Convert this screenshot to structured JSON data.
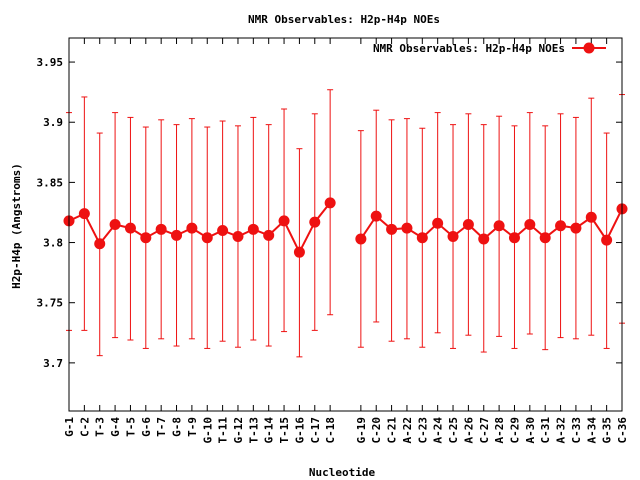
{
  "chart_data": {
    "type": "line",
    "title": "NMR Observables: H2p-H4p NOEs",
    "xlabel": "Nucleotide",
    "ylabel": "H2p-H4p (Angstroms)",
    "ylim": [
      3.66,
      3.97
    ],
    "yticks": [
      "3.7",
      "3.75",
      "3.8",
      "3.85",
      "3.9",
      "3.95"
    ],
    "ytick_values": [
      3.7,
      3.75,
      3.8,
      3.85,
      3.9,
      3.95
    ],
    "legend": {
      "position": "top-right",
      "label": "NMR Observables: H2p-H4p NOEs"
    },
    "series_color": "#ee1111",
    "series": [
      {
        "name": "NMR Observables: H2p-H4p NOEs",
        "points": [
          {
            "x": 1,
            "label": "G-1",
            "y": 3.818,
            "low": 3.727,
            "high": 3.908
          },
          {
            "x": 2,
            "label": "C-2",
            "y": 3.824,
            "low": 3.727,
            "high": 3.921
          },
          {
            "x": 3,
            "label": "T-3",
            "y": 3.799,
            "low": 3.706,
            "high": 3.891
          },
          {
            "x": 4,
            "label": "G-4",
            "y": 3.815,
            "low": 3.721,
            "high": 3.908
          },
          {
            "x": 5,
            "label": "T-5",
            "y": 3.812,
            "low": 3.719,
            "high": 3.904
          },
          {
            "x": 6,
            "label": "G-6",
            "y": 3.804,
            "low": 3.712,
            "high": 3.896
          },
          {
            "x": 7,
            "label": "T-7",
            "y": 3.811,
            "low": 3.72,
            "high": 3.902
          },
          {
            "x": 8,
            "label": "G-8",
            "y": 3.806,
            "low": 3.714,
            "high": 3.898
          },
          {
            "x": 9,
            "label": "T-9",
            "y": 3.812,
            "low": 3.72,
            "high": 3.903
          },
          {
            "x": 10,
            "label": "G-10",
            "y": 3.804,
            "low": 3.712,
            "high": 3.896
          },
          {
            "x": 11,
            "label": "T-11",
            "y": 3.81,
            "low": 3.718,
            "high": 3.901
          },
          {
            "x": 12,
            "label": "G-12",
            "y": 3.805,
            "low": 3.713,
            "high": 3.897
          },
          {
            "x": 13,
            "label": "T-13",
            "y": 3.811,
            "low": 3.719,
            "high": 3.904
          },
          {
            "x": 14,
            "label": "G-14",
            "y": 3.806,
            "low": 3.714,
            "high": 3.898
          },
          {
            "x": 15,
            "label": "T-15",
            "y": 3.818,
            "low": 3.726,
            "high": 3.911
          },
          {
            "x": 16,
            "label": "G-16",
            "y": 3.792,
            "low": 3.705,
            "high": 3.878
          },
          {
            "x": 17,
            "label": "C-17",
            "y": 3.817,
            "low": 3.727,
            "high": 3.907
          },
          {
            "x": 18,
            "label": "C-18",
            "y": 3.833,
            "low": 3.74,
            "high": 3.927
          },
          {
            "x": 20,
            "label": "G-19",
            "y": 3.803,
            "low": 3.713,
            "high": 3.893
          },
          {
            "x": 21,
            "label": "C-20",
            "y": 3.822,
            "low": 3.734,
            "high": 3.91
          },
          {
            "x": 22,
            "label": "C-21",
            "y": 3.811,
            "low": 3.718,
            "high": 3.902
          },
          {
            "x": 23,
            "label": "A-22",
            "y": 3.812,
            "low": 3.72,
            "high": 3.903
          },
          {
            "x": 24,
            "label": "C-23",
            "y": 3.804,
            "low": 3.713,
            "high": 3.895
          },
          {
            "x": 25,
            "label": "A-24",
            "y": 3.816,
            "low": 3.725,
            "high": 3.908
          },
          {
            "x": 26,
            "label": "C-25",
            "y": 3.805,
            "low": 3.712,
            "high": 3.898
          },
          {
            "x": 27,
            "label": "A-26",
            "y": 3.815,
            "low": 3.723,
            "high": 3.907
          },
          {
            "x": 28,
            "label": "C-27",
            "y": 3.803,
            "low": 3.709,
            "high": 3.898
          },
          {
            "x": 29,
            "label": "A-28",
            "y": 3.814,
            "low": 3.722,
            "high": 3.905
          },
          {
            "x": 30,
            "label": "C-29",
            "y": 3.804,
            "low": 3.712,
            "high": 3.897
          },
          {
            "x": 31,
            "label": "A-30",
            "y": 3.815,
            "low": 3.724,
            "high": 3.908
          },
          {
            "x": 32,
            "label": "C-31",
            "y": 3.804,
            "low": 3.711,
            "high": 3.897
          },
          {
            "x": 33,
            "label": "A-32",
            "y": 3.814,
            "low": 3.721,
            "high": 3.907
          },
          {
            "x": 34,
            "label": "C-33",
            "y": 3.812,
            "low": 3.72,
            "high": 3.904
          },
          {
            "x": 35,
            "label": "A-34",
            "y": 3.821,
            "low": 3.723,
            "high": 3.92
          },
          {
            "x": 36,
            "label": "G-35",
            "y": 3.802,
            "low": 3.712,
            "high": 3.891
          },
          {
            "x": 37,
            "label": "C-36",
            "y": 3.828,
            "low": 3.733,
            "high": 3.923
          }
        ]
      }
    ],
    "xlim": [
      1,
      37
    ],
    "grid": false
  }
}
